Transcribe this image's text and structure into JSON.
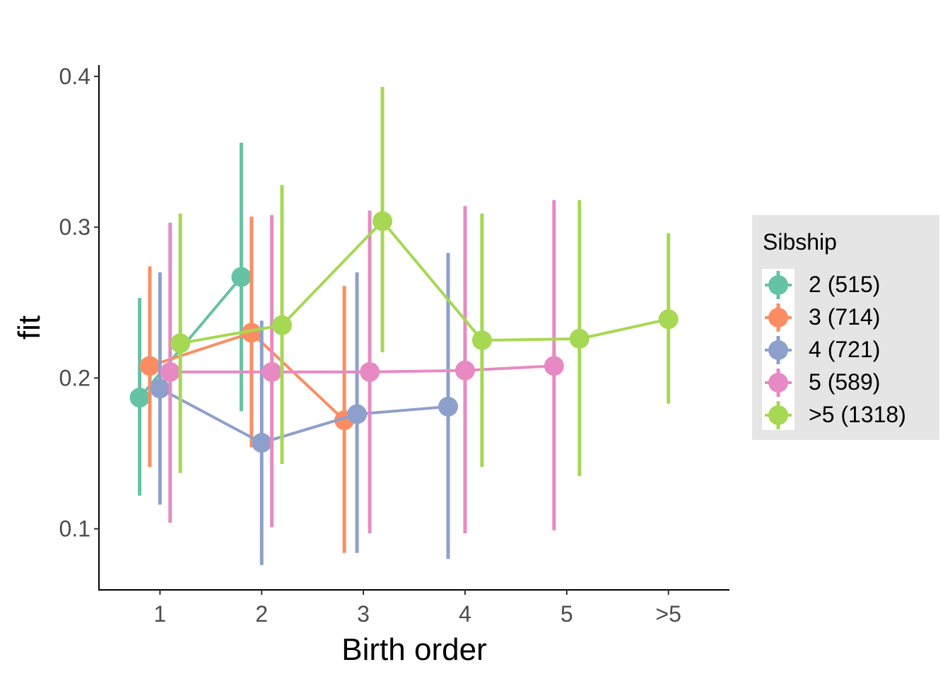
{
  "chart_data": {
    "type": "line",
    "subtype": "pointrange-dodged",
    "title": "",
    "xlabel": "Birth order",
    "ylabel": "fit",
    "categories": [
      "1",
      "2",
      "3",
      "4",
      "5",
      ">5"
    ],
    "y_ticks": [
      0.1,
      0.2,
      0.3,
      0.4
    ],
    "y_tick_labels": [
      "0.1",
      "0.2",
      "0.3",
      "0.4"
    ],
    "ylim": [
      0.0595,
      0.4075
    ],
    "xlim_index": [
      0.4,
      6.6
    ],
    "dodge_width": 0.5,
    "grid": false,
    "legend": {
      "title": "Sibship",
      "placement": "right"
    },
    "series": [
      {
        "name": "2 (515)",
        "color": "#66C2A5",
        "points": [
          {
            "x": "1",
            "fit": 0.187,
            "lower": 0.122,
            "upper": 0.253
          },
          {
            "x": "2",
            "fit": 0.267,
            "lower": 0.178,
            "upper": 0.356
          }
        ]
      },
      {
        "name": "3 (714)",
        "color": "#FC8D62",
        "points": [
          {
            "x": "1",
            "fit": 0.208,
            "lower": 0.141,
            "upper": 0.274
          },
          {
            "x": "2",
            "fit": 0.23,
            "lower": 0.154,
            "upper": 0.307
          },
          {
            "x": "3",
            "fit": 0.172,
            "lower": 0.084,
            "upper": 0.261
          }
        ]
      },
      {
        "name": "4 (721)",
        "color": "#8DA0CB",
        "points": [
          {
            "x": "1",
            "fit": 0.193,
            "lower": 0.116,
            "upper": 0.27
          },
          {
            "x": "2",
            "fit": 0.157,
            "lower": 0.076,
            "upper": 0.238
          },
          {
            "x": "3",
            "fit": 0.176,
            "lower": 0.084,
            "upper": 0.27
          },
          {
            "x": "4",
            "fit": 0.181,
            "lower": 0.08,
            "upper": 0.283
          }
        ]
      },
      {
        "name": "5 (589)",
        "color": "#E78AC3",
        "points": [
          {
            "x": "1",
            "fit": 0.204,
            "lower": 0.104,
            "upper": 0.303
          },
          {
            "x": "2",
            "fit": 0.204,
            "lower": 0.101,
            "upper": 0.308
          },
          {
            "x": "3",
            "fit": 0.204,
            "lower": 0.097,
            "upper": 0.311
          },
          {
            "x": "4",
            "fit": 0.205,
            "lower": 0.097,
            "upper": 0.314
          },
          {
            "x": "5",
            "fit": 0.208,
            "lower": 0.099,
            "upper": 0.318
          }
        ]
      },
      {
        "name": ">5 (1318)",
        "color": "#A6D854",
        "points": [
          {
            "x": "1",
            "fit": 0.223,
            "lower": 0.137,
            "upper": 0.309
          },
          {
            "x": "2",
            "fit": 0.235,
            "lower": 0.143,
            "upper": 0.328
          },
          {
            "x": "3",
            "fit": 0.304,
            "lower": 0.217,
            "upper": 0.393
          },
          {
            "x": "4",
            "fit": 0.225,
            "lower": 0.141,
            "upper": 0.309
          },
          {
            "x": "5",
            "fit": 0.226,
            "lower": 0.135,
            "upper": 0.318
          },
          {
            "x": ">5",
            "fit": 0.239,
            "lower": 0.183,
            "upper": 0.296
          }
        ]
      }
    ]
  }
}
